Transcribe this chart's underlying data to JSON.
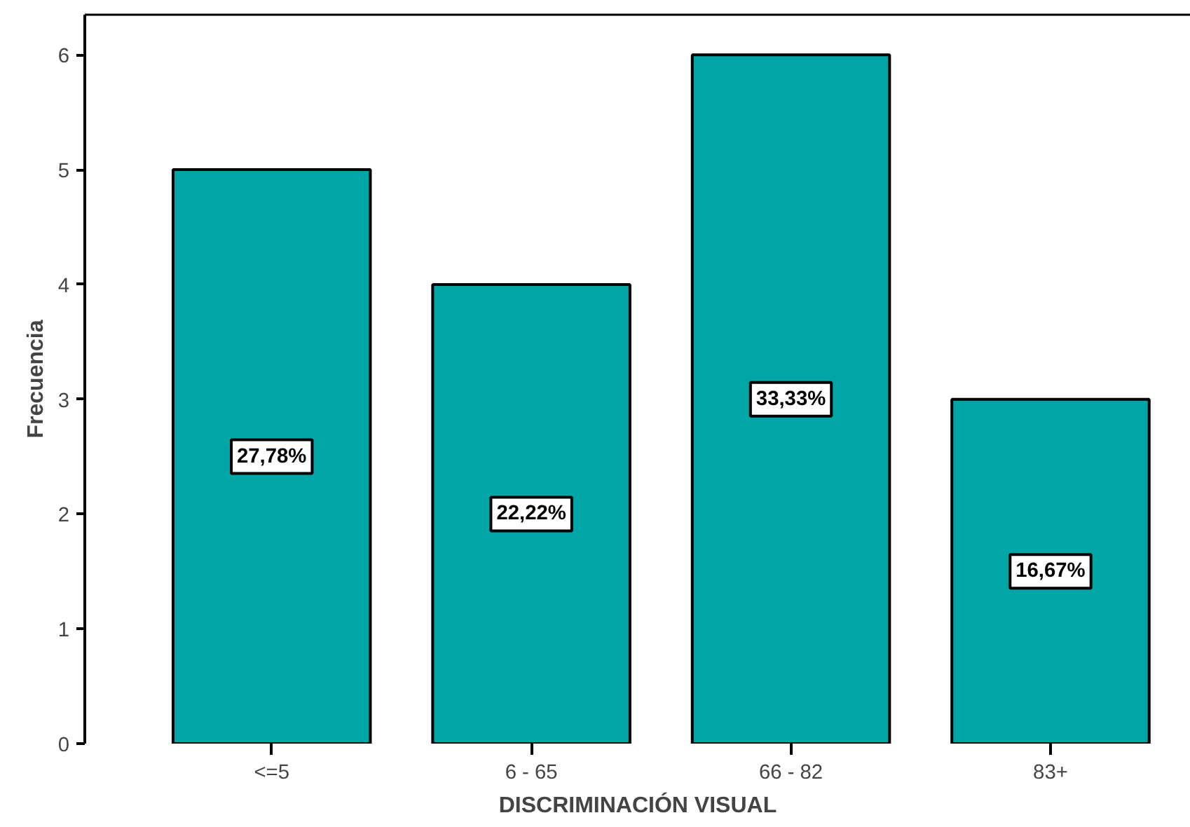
{
  "chart_data": {
    "type": "bar",
    "xlabel": "DISCRIMINACIÓN VISUAL",
    "ylabel": "Frecuencia",
    "categories": [
      "<=5",
      "6 - 65",
      "66 - 82",
      "83+"
    ],
    "values": [
      5,
      4,
      6,
      3
    ],
    "annotations": [
      "27,78%",
      "22,22%",
      "33,33%",
      "16,67%"
    ],
    "color": "#00a5a5",
    "ylim": [
      0,
      6.35
    ],
    "yticks": [
      0,
      1,
      2,
      3,
      4,
      5,
      6
    ],
    "grid": false
  }
}
